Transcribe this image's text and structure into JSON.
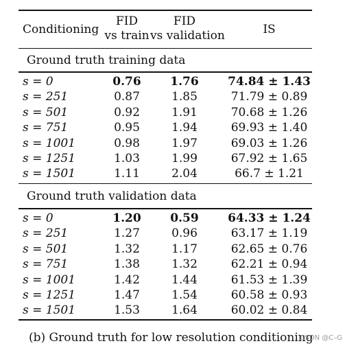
{
  "header": {
    "conditioning": "Conditioning",
    "fid_train_line1": "FID",
    "fid_train_line2": "vs train",
    "fid_val_line1": "FID",
    "fid_val_line2": "vs validation",
    "is": "IS"
  },
  "sections": [
    {
      "title": "Ground truth training data",
      "rows": [
        {
          "s": "s = 0",
          "fid_train": "0.76",
          "fid_val": "1.76",
          "is": "74.84 ± 1.43",
          "bold": true
        },
        {
          "s": "s = 251",
          "fid_train": "0.87",
          "fid_val": "1.85",
          "is": "71.79 ± 0.89",
          "bold": false
        },
        {
          "s": "s = 501",
          "fid_train": "0.92",
          "fid_val": "1.91",
          "is": "70.68 ± 1.26",
          "bold": false
        },
        {
          "s": "s = 751",
          "fid_train": "0.95",
          "fid_val": "1.94",
          "is": "69.93 ± 1.40",
          "bold": false
        },
        {
          "s": "s = 1001",
          "fid_train": "0.98",
          "fid_val": "1.97",
          "is": "69.03 ± 1.26",
          "bold": false
        },
        {
          "s": "s = 1251",
          "fid_train": "1.03",
          "fid_val": "1.99",
          "is": "67.92 ± 1.65",
          "bold": false
        },
        {
          "s": "s = 1501",
          "fid_train": "1.11",
          "fid_val": "2.04",
          "is": "66.7 ± 1.21",
          "bold": false
        }
      ]
    },
    {
      "title": "Ground truth validation data",
      "rows": [
        {
          "s": "s = 0",
          "fid_train": "1.20",
          "fid_val": "0.59",
          "is": "64.33 ± 1.24",
          "bold": true
        },
        {
          "s": "s = 251",
          "fid_train": "1.27",
          "fid_val": "0.96",
          "is": "63.17 ± 1.19",
          "bold": false
        },
        {
          "s": "s = 501",
          "fid_train": "1.32",
          "fid_val": "1.17",
          "is": "62.65 ± 0.76",
          "bold": false
        },
        {
          "s": "s = 751",
          "fid_train": "1.38",
          "fid_val": "1.32",
          "is": "62.21 ± 0.94",
          "bold": false
        },
        {
          "s": "s = 1001",
          "fid_train": "1.42",
          "fid_val": "1.44",
          "is": "61.53 ± 1.39",
          "bold": false
        },
        {
          "s": "s = 1251",
          "fid_train": "1.47",
          "fid_val": "1.54",
          "is": "60.58 ± 0.93",
          "bold": false
        },
        {
          "s": "s = 1501",
          "fid_train": "1.53",
          "fid_val": "1.64",
          "is": "60.02 ± 0.84",
          "bold": false
        }
      ]
    }
  ],
  "caption": "(b) Ground truth for low resolution conditioning",
  "watermark": "CSDN @C–G"
}
